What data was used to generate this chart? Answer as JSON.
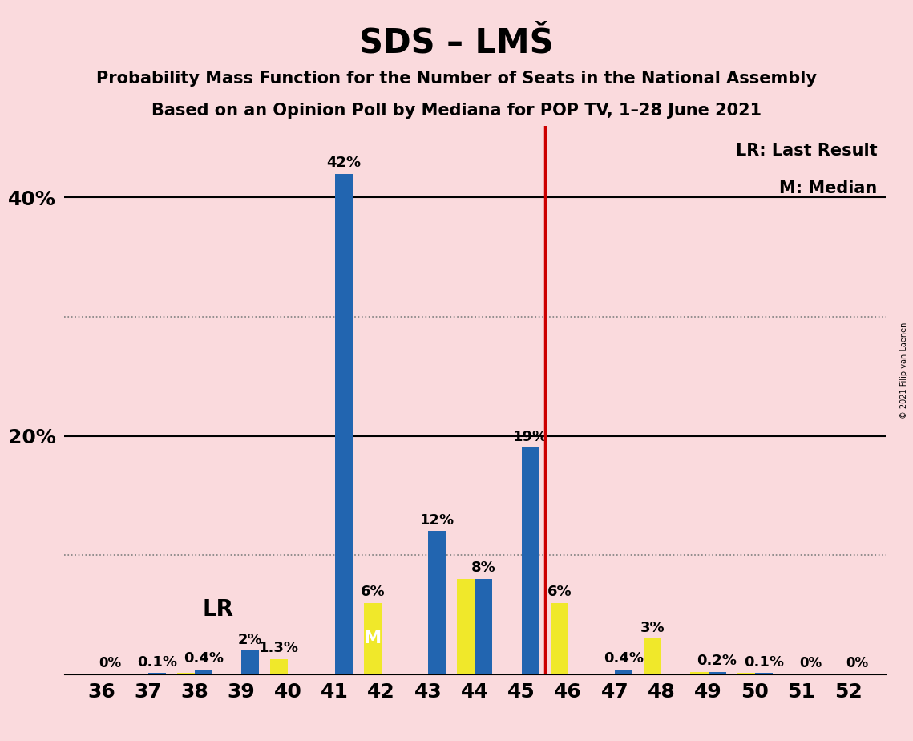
{
  "title": "SDS – LMŠ",
  "subtitle1": "Probability Mass Function for the Number of Seats in the National Assembly",
  "subtitle2": "Based on an Opinion Poll by Mediana for POP TV, 1–28 June 2021",
  "copyright": "© 2021 Filip van Laenen",
  "seats": [
    36,
    37,
    38,
    39,
    40,
    41,
    42,
    43,
    44,
    45,
    46,
    47,
    48,
    49,
    50,
    51,
    52
  ],
  "pmf_values": [
    0.0,
    0.1,
    0.4,
    2.0,
    0.0,
    42.0,
    0.0,
    12.0,
    8.0,
    19.0,
    0.0,
    0.4,
    0.0,
    0.2,
    0.1,
    0.0,
    0.0
  ],
  "lr_values": [
    0.0,
    0.0,
    0.1,
    0.0,
    1.3,
    0.0,
    6.0,
    0.0,
    8.0,
    0.0,
    6.0,
    0.0,
    3.0,
    0.2,
    0.1,
    0.0,
    0.0
  ],
  "pmf_labels": [
    "0%",
    "0.1%",
    "0.4%",
    "2%",
    "",
    "42%",
    "",
    "12%",
    "8%",
    "19%",
    "",
    "0.4%",
    "",
    "0.2%",
    "0.1%",
    "0%",
    "0%"
  ],
  "lr_labels": [
    "",
    "",
    "",
    "",
    "1.3%",
    "",
    "6%",
    "",
    "",
    "",
    "6%",
    "",
    "3%",
    "",
    "",
    "",
    ""
  ],
  "median_seat": 42,
  "lr_seat": 39,
  "red_line_x": 45.5,
  "ylim": [
    0,
    46
  ],
  "bar_color_blue": "#2265b0",
  "bar_color_yellow": "#f0e82a",
  "background_color": "#fadadd",
  "red_line_color": "#cc0000",
  "legend_lr": "LR: Last Result",
  "legend_m": "M: Median",
  "lr_label_text": "LR",
  "m_label_text": "M",
  "solid_hlines": [
    20,
    40
  ],
  "dotted_hlines": [
    10,
    30
  ],
  "ytick_positions": [
    20,
    40
  ],
  "ytick_labels": [
    "20%",
    "40%"
  ],
  "label_fontsize": 13,
  "tick_fontsize": 18,
  "title_fontsize": 30,
  "subtitle_fontsize": 15
}
